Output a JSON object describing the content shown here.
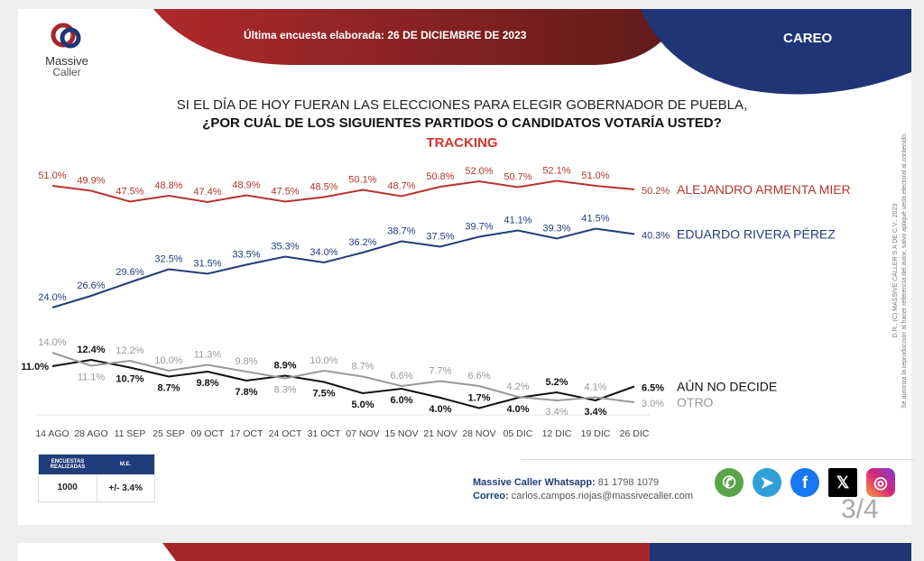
{
  "header": {
    "logo_line1": "Massive",
    "logo_line2": "Caller",
    "banner": "Última encuesta elaborada: 26 DE DICIEMBRE DE 2023",
    "section": "CAREO"
  },
  "question": {
    "line1": "SI EL DÍA DE HOY FUERAN LAS ELECCIONES PARA ELEGIR GOBERNADOR DE PUEBLA,",
    "line2": "¿POR CUÁL DE LOS SIGUIENTES PARTIDOS O CANDIDATOS  VOTARÍA USTED?",
    "line3": "TRACKING"
  },
  "chart_data": {
    "type": "line",
    "categories": [
      "14 AGO",
      "28 AGO",
      "11 SEP",
      "25 SEP",
      "09 OCT",
      "17 OCT",
      "24 OCT",
      "31 OCT",
      "07 NOV",
      "15 NOV",
      "21 NOV",
      "28 NOV",
      "05 DIC",
      "12 DIC",
      "19 DIC",
      "26 DIC"
    ],
    "unit": "%",
    "grid": false,
    "legend": "right (end-of-line labels)",
    "series": [
      {
        "name": "ALEJANDRO ARMENTA MIER",
        "color": "#b5352e",
        "values": [
          51.0,
          49.9,
          47.5,
          48.8,
          47.4,
          48.9,
          47.5,
          48.5,
          50.1,
          48.7,
          50.8,
          52.0,
          50.7,
          52.1,
          51.0,
          50.2
        ]
      },
      {
        "name": "EDUARDO RIVERA PÉREZ",
        "color": "#1f3d7a",
        "values": [
          24.0,
          26.6,
          29.6,
          32.5,
          31.5,
          33.5,
          35.3,
          34.0,
          36.2,
          38.7,
          37.5,
          39.7,
          41.1,
          39.3,
          41.5,
          40.3
        ]
      },
      {
        "name": "AÚN NO DECIDE",
        "color": "#111111",
        "values": [
          11.0,
          12.4,
          10.7,
          8.7,
          9.8,
          7.8,
          8.9,
          7.5,
          5.0,
          6.0,
          4.0,
          1.7,
          4.0,
          5.2,
          3.4,
          6.5
        ]
      },
      {
        "name": "OTRO",
        "color": "#999999",
        "values": [
          14.0,
          11.1,
          12.2,
          10.0,
          11.3,
          9.8,
          8.3,
          10.0,
          8.7,
          6.6,
          7.7,
          6.6,
          4.2,
          3.4,
          4.1,
          3.0
        ]
      }
    ]
  },
  "side_note": {
    "line1": "D.R., (C) MASSIVE CALLER S.A DE C.V., 2023",
    "line2": "Se autoriza la reproducción al hacer referencia del autor, salvo apliqué veda electoral al contenido."
  },
  "stats": {
    "col1": "ENCUESTAS REALIZADAS",
    "col2": "M.E.",
    "val1": "1000",
    "val2": "+/- 3.4%"
  },
  "contact": {
    "whatsapp_label": "Massive Caller Whatsapp:",
    "whatsapp_value": "81 1798 1079",
    "email_label": "Correo:",
    "email_value": "carlos.campos.riojas@massivecaller.com"
  },
  "social": [
    "whatsapp-icon",
    "telegram-icon",
    "facebook-icon",
    "x-icon",
    "instagram-icon"
  ],
  "page": "3/4",
  "colors": {
    "red": "#a4282a",
    "navy": "#1f3576"
  }
}
